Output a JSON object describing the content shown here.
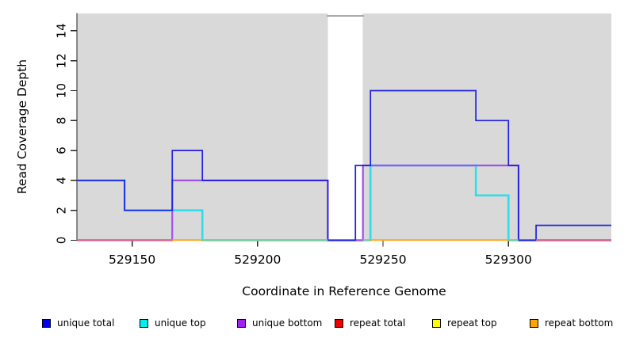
{
  "figure": {
    "x_axis_title": "Coordinate in Reference Genome",
    "y_axis_title": "Read Coverage Depth"
  },
  "chart_data": {
    "type": "line",
    "subtype": "step",
    "title": "",
    "xlabel": "Coordinate in Reference Genome",
    "ylabel": "Read Coverage Depth",
    "xlim": [
      529128,
      529341
    ],
    "ylim": [
      0,
      15.16
    ],
    "x_ticks": [
      "529150",
      "529200",
      "529250",
      "529300"
    ],
    "x_tick_values": [
      529150,
      529200,
      529250,
      529300
    ],
    "y_ticks": [
      "0",
      "2",
      "4",
      "6",
      "8",
      "10",
      "12",
      "14"
    ],
    "y_tick_values": [
      0,
      2,
      4,
      6,
      8,
      10,
      12,
      14
    ],
    "grid": false,
    "panel_background": "#d9d9d9",
    "masked_region": {
      "from": 529228,
      "to": 529242,
      "fill": "#ffffff",
      "top_marker_depth": 15,
      "marker_color": "#909090"
    },
    "series": [
      {
        "name": "unique total",
        "legend_color": "#0000ee",
        "line_color": "#2020e0",
        "steps": [
          [
            529128,
            4
          ],
          [
            529147,
            2
          ],
          [
            529166,
            6
          ],
          [
            529178,
            4
          ],
          [
            529228,
            0
          ],
          [
            529239,
            5
          ],
          [
            529245,
            10
          ],
          [
            529287,
            8
          ],
          [
            529300,
            5
          ],
          [
            529304,
            0
          ],
          [
            529311,
            1
          ],
          [
            529341,
            1
          ]
        ]
      },
      {
        "name": "unique top",
        "legend_color": "#00eeee",
        "line_color": "#30dde8",
        "steps": [
          [
            529128,
            4
          ],
          [
            529147,
            2
          ],
          [
            529178,
            0
          ],
          [
            529245,
            5
          ],
          [
            529287,
            3
          ],
          [
            529300,
            0
          ],
          [
            529341,
            0
          ]
        ]
      },
      {
        "name": "unique bottom",
        "legend_color": "#a020f0",
        "line_color": "#a352e8",
        "steps": [
          [
            529128,
            0
          ],
          [
            529166,
            4
          ],
          [
            529228,
            0
          ],
          [
            529242,
            5
          ],
          [
            529304,
            0
          ],
          [
            529341,
            0
          ]
        ]
      },
      {
        "name": "repeat total",
        "legend_color": "#ee0000",
        "line_color": "#e02020",
        "steps": [
          [
            529128,
            0
          ],
          [
            529341,
            0
          ]
        ]
      },
      {
        "name": "repeat top",
        "legend_color": "#ffff00",
        "line_color": "#f0f000",
        "steps": [
          [
            529128,
            0
          ],
          [
            529341,
            0
          ]
        ]
      },
      {
        "name": "repeat bottom",
        "legend_color": "#ffa500",
        "line_color": "#ffa510",
        "steps": [
          [
            529128,
            0
          ],
          [
            529341,
            0
          ]
        ]
      }
    ],
    "baseline_overlap_segments": [
      {
        "from": 529128,
        "to": 529166,
        "color": "#e0647f"
      },
      {
        "from": 529166,
        "to": 529178,
        "color": "#ffa510"
      },
      {
        "from": 529178,
        "to": 529228,
        "color": "#82c98f"
      },
      {
        "from": 529242,
        "to": 529245,
        "color": "#82c98f"
      },
      {
        "from": 529245,
        "to": 529300,
        "color": "#ffa510"
      },
      {
        "from": 529300,
        "to": 529304,
        "color": "#82c98f"
      },
      {
        "from": 529311,
        "to": 529341,
        "color": "#e0647f"
      }
    ],
    "legend_position": "bottom"
  }
}
